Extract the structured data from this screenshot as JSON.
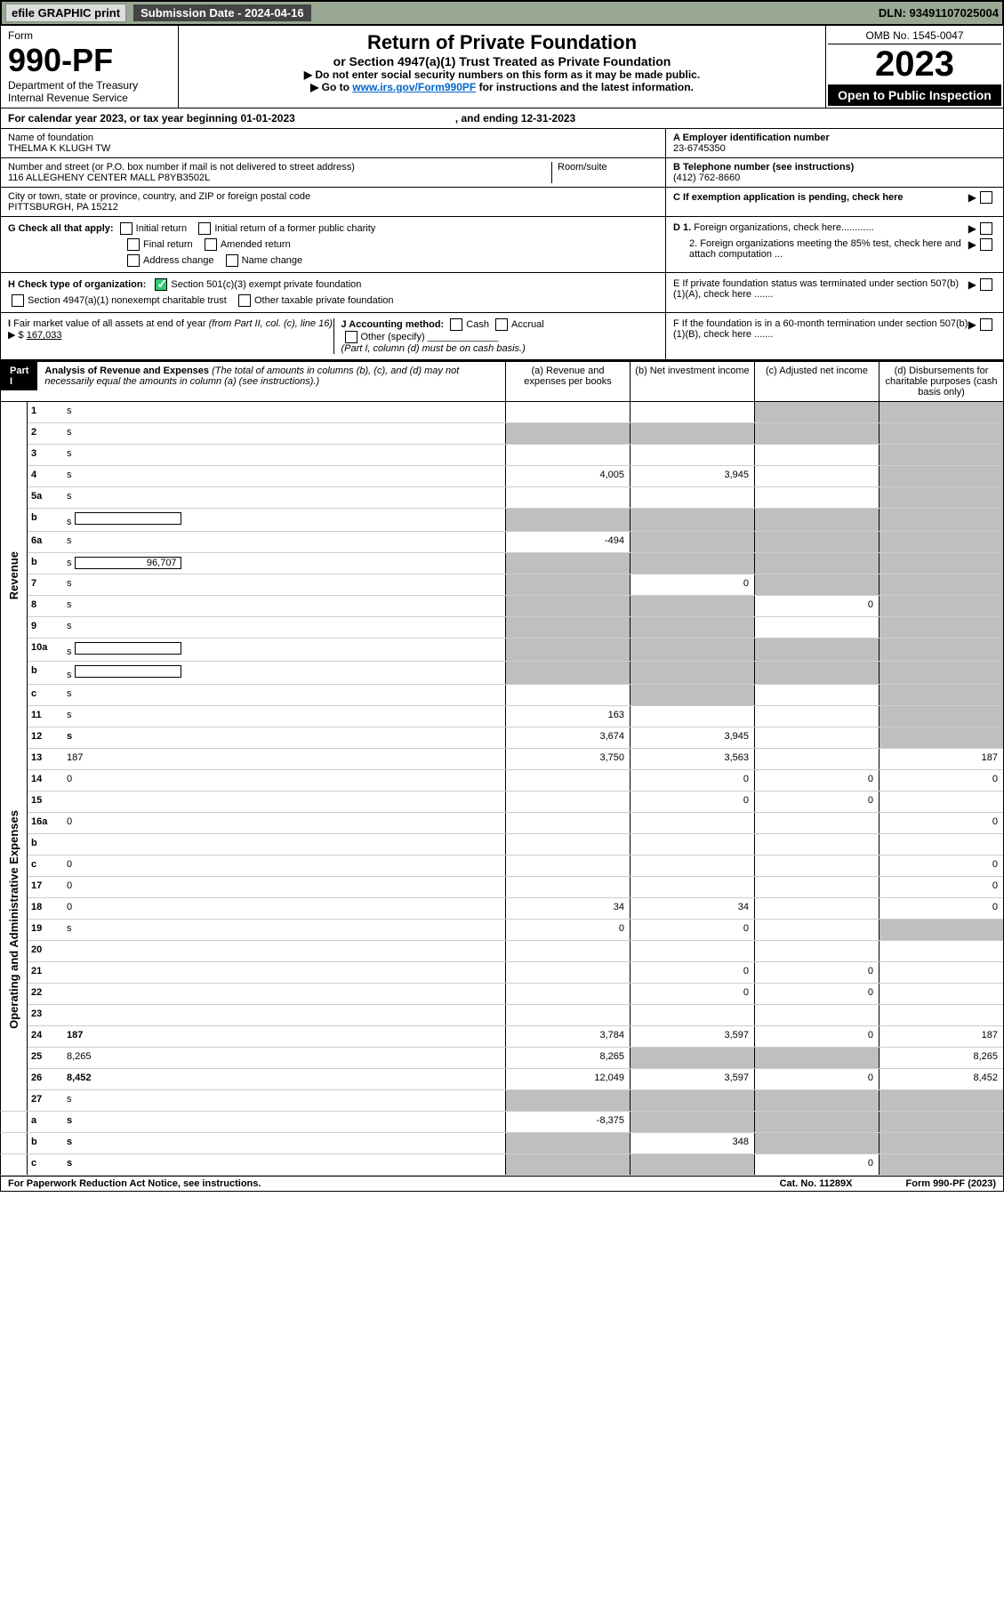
{
  "topbar": {
    "efile": "efile GRAPHIC print",
    "submission_label": "Submission Date - 2024-04-16",
    "dln": "DLN: 93491107025004"
  },
  "header": {
    "form_label": "Form",
    "form_num": "990-PF",
    "dept1": "Department of the Treasury",
    "dept2": "Internal Revenue Service",
    "title1": "Return of Private Foundation",
    "title2": "or Section 4947(a)(1) Trust Treated as Private Foundation",
    "instr1": "▶ Do not enter social security numbers on this form as it may be made public.",
    "instr2_pre": "▶ Go to ",
    "instr2_link": "www.irs.gov/Form990PF",
    "instr2_post": " for instructions and the latest information.",
    "omb": "OMB No. 1545-0047",
    "year": "2023",
    "open": "Open to Public Inspection"
  },
  "calrow": {
    "pre": "For calendar year 2023, or tax year beginning 01-01-2023",
    "end": ", and ending 12-31-2023"
  },
  "info": {
    "name_label": "Name of foundation",
    "name": "THELMA K KLUGH TW",
    "addr_label": "Number and street (or P.O. box number if mail is not delivered to street address)",
    "addr": "116 ALLEGHENY CENTER MALL P8YB3502L",
    "room_label": "Room/suite",
    "city_label": "City or town, state or province, country, and ZIP or foreign postal code",
    "city": "PITTSBURGH, PA  15212",
    "ein_label": "A Employer identification number",
    "ein": "23-6745350",
    "tel_label": "B Telephone number (see instructions)",
    "tel": "(412) 762-8660",
    "c_label": "C If exemption application is pending, check here",
    "d1": "D 1. Foreign organizations, check here............",
    "d2": "2. Foreign organizations meeting the 85% test, check here and attach computation ...",
    "e": "E  If private foundation status was terminated under section 507(b)(1)(A), check here .......",
    "f": "F  If the foundation is in a 60-month termination under section 507(b)(1)(B), check here .......",
    "g_label": "G Check all that apply:",
    "g_opts": [
      "Initial return",
      "Initial return of a former public charity",
      "Final return",
      "Amended return",
      "Address change",
      "Name change"
    ],
    "h_label": "H Check type of organization:",
    "h1": "Section 501(c)(3) exempt private foundation",
    "h2": "Section 4947(a)(1) nonexempt charitable trust",
    "h3": "Other taxable private foundation",
    "i_label": "I Fair market value of all assets at end of year (from Part II, col. (c), line 16) ▶ $",
    "i_val": "167,033",
    "j_label": "J Accounting method:",
    "j_cash": "Cash",
    "j_accrual": "Accrual",
    "j_other": "Other (specify)",
    "j_note": "(Part I, column (d) must be on cash basis.)"
  },
  "part1": {
    "label": "Part I",
    "title": "Analysis of Revenue and Expenses",
    "note": "(The total of amounts in columns (b), (c), and (d) may not necessarily equal the amounts in column (a) (see instructions).)",
    "col_a": "(a)  Revenue and expenses per books",
    "col_b": "(b)  Net investment income",
    "col_c": "(c)  Adjusted net income",
    "col_d": "(d)  Disbursements for charitable purposes (cash basis only)"
  },
  "sections": {
    "revenue": "Revenue",
    "opex": "Operating and Administrative Expenses"
  },
  "lines": [
    {
      "n": "1",
      "d": "s",
      "a": "",
      "b": "",
      "c": "s"
    },
    {
      "n": "2",
      "d": "s",
      "a": "s",
      "b": "s",
      "c": "s",
      "bold_not": true
    },
    {
      "n": "3",
      "d": "s",
      "a": "",
      "b": "",
      "c": ""
    },
    {
      "n": "4",
      "d": "s",
      "a": "4,005",
      "b": "3,945",
      "c": ""
    },
    {
      "n": "5a",
      "d": "s",
      "a": "",
      "b": "",
      "c": ""
    },
    {
      "n": "b",
      "d": "s",
      "a": "s",
      "b": "s",
      "c": "s",
      "inline": true
    },
    {
      "n": "6a",
      "d": "s",
      "a": "-494",
      "b": "s",
      "c": "s"
    },
    {
      "n": "b",
      "d": "s",
      "a": "s",
      "b": "s",
      "c": "s",
      "inline": true,
      "inline_val": "96,707"
    },
    {
      "n": "7",
      "d": "s",
      "a": "s",
      "b": "0",
      "c": "s"
    },
    {
      "n": "8",
      "d": "s",
      "a": "s",
      "b": "s",
      "c": "0"
    },
    {
      "n": "9",
      "d": "s",
      "a": "s",
      "b": "s",
      "c": ""
    },
    {
      "n": "10a",
      "d": "s",
      "a": "s",
      "b": "s",
      "c": "s",
      "inline": true
    },
    {
      "n": "b",
      "d": "s",
      "a": "s",
      "b": "s",
      "c": "s",
      "inline": true
    },
    {
      "n": "c",
      "d": "s",
      "a": "",
      "b": "s",
      "c": ""
    },
    {
      "n": "11",
      "d": "s",
      "a": "163",
      "b": "",
      "c": ""
    },
    {
      "n": "12",
      "d": "s",
      "a": "3,674",
      "b": "3,945",
      "c": "",
      "bold": true
    }
  ],
  "oplines": [
    {
      "n": "13",
      "d": "187",
      "a": "3,750",
      "b": "3,563",
      "c": ""
    },
    {
      "n": "14",
      "d": "0",
      "a": "",
      "b": "0",
      "c": "0"
    },
    {
      "n": "15",
      "d": "",
      "a": "",
      "b": "0",
      "c": "0"
    },
    {
      "n": "16a",
      "d": "0",
      "a": "",
      "b": "",
      "c": ""
    },
    {
      "n": "b",
      "d": "",
      "a": "",
      "b": "",
      "c": ""
    },
    {
      "n": "c",
      "d": "0",
      "a": "",
      "b": "",
      "c": ""
    },
    {
      "n": "17",
      "d": "0",
      "a": "",
      "b": "",
      "c": ""
    },
    {
      "n": "18",
      "d": "0",
      "a": "34",
      "b": "34",
      "c": ""
    },
    {
      "n": "19",
      "d": "s",
      "a": "0",
      "b": "0",
      "c": ""
    },
    {
      "n": "20",
      "d": "",
      "a": "",
      "b": "",
      "c": ""
    },
    {
      "n": "21",
      "d": "",
      "a": "",
      "b": "0",
      "c": "0"
    },
    {
      "n": "22",
      "d": "",
      "a": "",
      "b": "0",
      "c": "0"
    },
    {
      "n": "23",
      "d": "",
      "a": "",
      "b": "",
      "c": ""
    },
    {
      "n": "24",
      "d": "187",
      "a": "3,784",
      "b": "3,597",
      "c": "0",
      "bold": true
    },
    {
      "n": "25",
      "d": "8,265",
      "a": "8,265",
      "b": "s",
      "c": "s"
    },
    {
      "n": "26",
      "d": "8,452",
      "a": "12,049",
      "b": "3,597",
      "c": "0",
      "bold": true
    }
  ],
  "botlines": [
    {
      "n": "27",
      "d": "s",
      "a": "s",
      "b": "s",
      "c": "s"
    },
    {
      "n": "a",
      "d": "s",
      "a": "-8,375",
      "b": "s",
      "c": "s",
      "bold": true
    },
    {
      "n": "b",
      "d": "s",
      "a": "s",
      "b": "348",
      "c": "s",
      "bold": true
    },
    {
      "n": "c",
      "d": "s",
      "a": "s",
      "b": "s",
      "c": "0",
      "bold": true
    }
  ],
  "footer": {
    "left": "For Paperwork Reduction Act Notice, see instructions.",
    "mid": "Cat. No. 11289X",
    "right": "Form 990-PF (2023)"
  }
}
